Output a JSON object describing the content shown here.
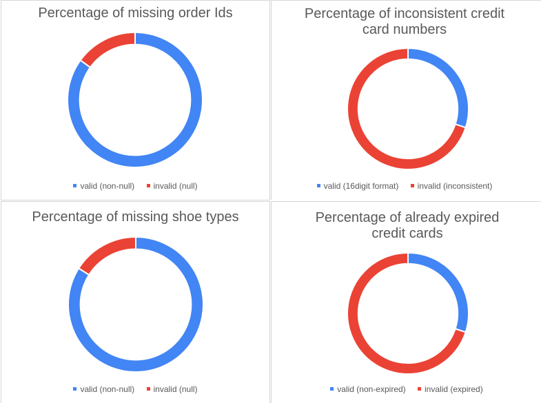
{
  "colors": {
    "valid": "#4285f4",
    "invalid": "#ea4335"
  },
  "chart_data": [
    {
      "type": "pie",
      "title_lines": [
        "Percentage of missing order Ids"
      ],
      "categories": [
        "valid (non-null)",
        "invalid (null)"
      ],
      "values": [
        85,
        15
      ],
      "legend": "bottom"
    },
    {
      "type": "pie",
      "title_lines": [
        "Percentage of inconsistent credit",
        "card numbers"
      ],
      "categories": [
        "valid (16digit format)",
        "invalid (inconsistent)"
      ],
      "values": [
        30,
        70
      ],
      "legend": "bottom"
    },
    {
      "type": "pie",
      "title_lines": [
        "Percentage of missing shoe types"
      ],
      "categories": [
        "valid (non-null)",
        "invalid (null)"
      ],
      "values": [
        84,
        16
      ],
      "legend": "bottom"
    },
    {
      "type": "pie",
      "title_lines": [
        "Percentage of already expired",
        "credit cards"
      ],
      "categories": [
        "valid (non-expired)",
        "invalid (expired)"
      ],
      "values": [
        30,
        70
      ],
      "legend": "bottom"
    }
  ]
}
